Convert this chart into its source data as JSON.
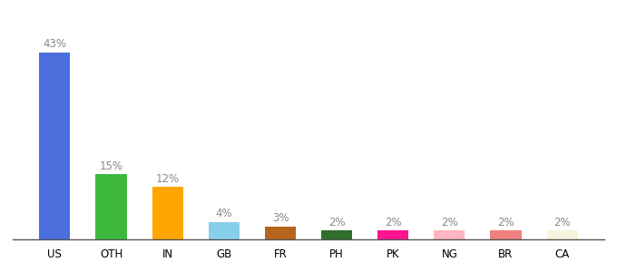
{
  "categories": [
    "US",
    "OTH",
    "IN",
    "GB",
    "FR",
    "PH",
    "PK",
    "NG",
    "BR",
    "CA"
  ],
  "values": [
    43,
    15,
    12,
    4,
    3,
    2,
    2,
    2,
    2,
    2
  ],
  "bar_colors": [
    "#4a6edb",
    "#3db83d",
    "#ffa500",
    "#87ceeb",
    "#b5651d",
    "#2d6e2d",
    "#ff1493",
    "#ffb6c1",
    "#f08080",
    "#f5f5dc"
  ],
  "label_fontsize": 8.5,
  "tick_fontsize": 8.5,
  "background_color": "#ffffff",
  "ylim": [
    0,
    50
  ],
  "bar_width": 0.55
}
